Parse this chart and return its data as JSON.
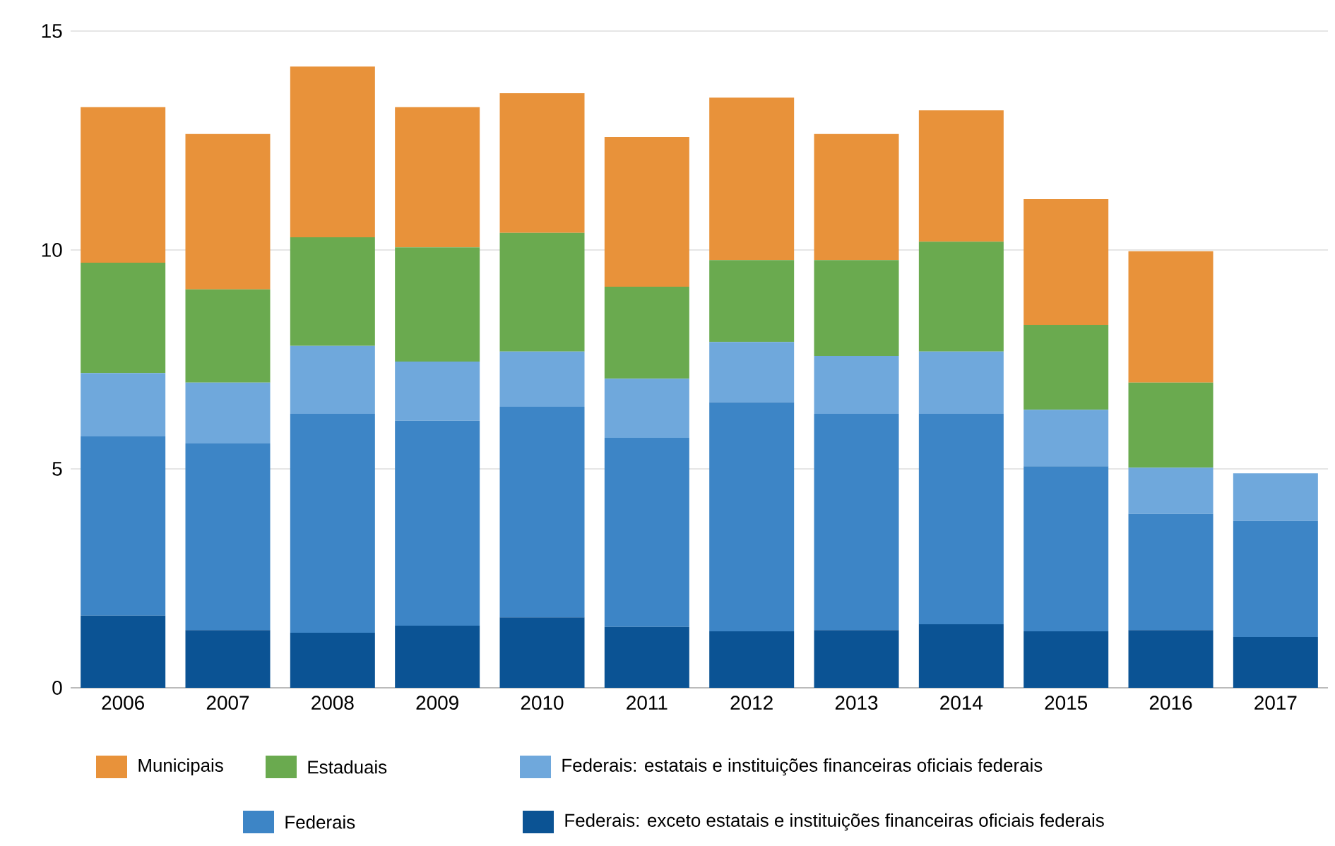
{
  "chart_data": {
    "type": "bar",
    "stacked": true,
    "categories": [
      "2006",
      "2007",
      "2008",
      "2009",
      "2010",
      "2011",
      "2012",
      "2013",
      "2014",
      "2015",
      "2016",
      "2017"
    ],
    "series": [
      {
        "name": "Federais: exceto estatais e instituições financeiras oficiais federais",
        "color": "#0b5394",
        "values": [
          1.65,
          1.32,
          1.26,
          1.42,
          1.61,
          1.39,
          1.29,
          1.32,
          1.45,
          1.29,
          1.32,
          1.16
        ]
      },
      {
        "name": "Federais",
        "color": "#3d85c6",
        "values": [
          4.09,
          4.26,
          5.0,
          4.68,
          4.81,
          4.32,
          5.23,
          4.94,
          4.81,
          3.77,
          2.65,
          2.65
        ]
      },
      {
        "name": "Federais: estatais e instituições financeiras oficiais federais",
        "color": "#6fa8dc",
        "values": [
          1.45,
          1.39,
          1.55,
          1.35,
          1.26,
          1.35,
          1.38,
          1.32,
          1.42,
          1.29,
          1.06,
          1.09
        ]
      },
      {
        "name": "Estaduais",
        "color": "#6aaa4f",
        "values": [
          2.52,
          2.13,
          2.48,
          2.61,
          2.71,
          2.1,
          1.87,
          2.19,
          2.51,
          1.94,
          1.94,
          null
        ]
      },
      {
        "name": "Municipais",
        "color": "#e8923a",
        "values": [
          3.55,
          3.55,
          3.9,
          3.2,
          3.19,
          3.42,
          3.71,
          2.88,
          3.0,
          2.87,
          3.0,
          null
        ]
      }
    ],
    "ylim": [
      0,
      15
    ],
    "yticks": [
      0,
      5,
      10,
      15
    ],
    "grid": "y",
    "legend": "bottom"
  }
}
